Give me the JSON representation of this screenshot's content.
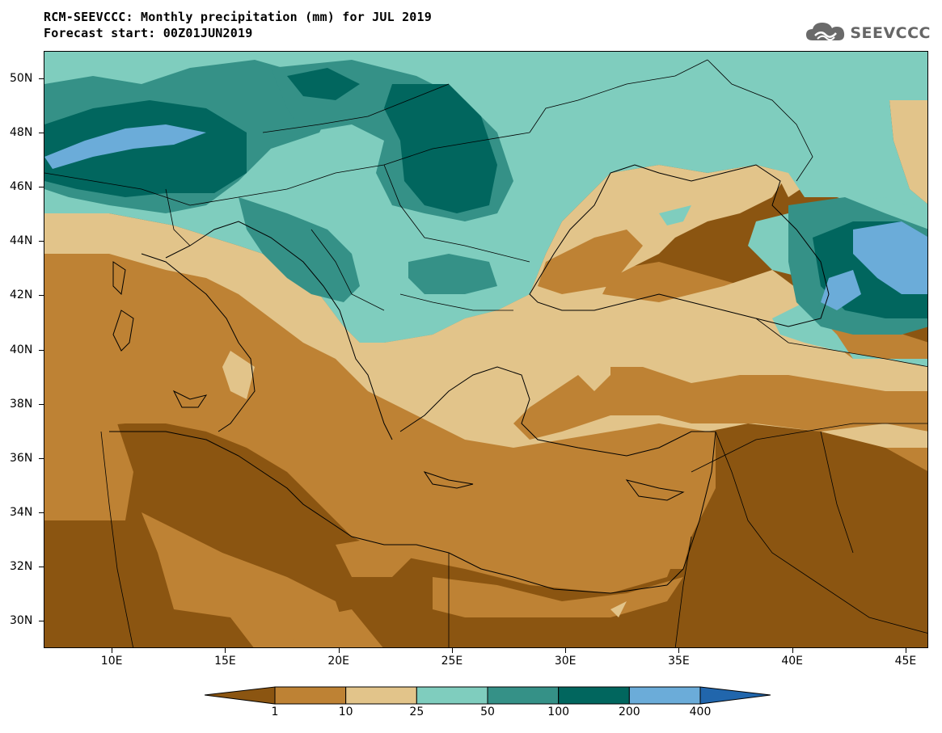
{
  "header": {
    "title": "RCM-SEEVCCC: Monthly precipitation (mm) for JUL 2019",
    "subtitle": "Forecast start: 00Z01JUN2019"
  },
  "logo": {
    "text": "SEEVCCC",
    "icon": "cloud-icon"
  },
  "map": {
    "lat_range": [
      29,
      51
    ],
    "lon_range": [
      7,
      46
    ],
    "lat_ticks": [
      {
        "value": 50,
        "label": "50N"
      },
      {
        "value": 48,
        "label": "48N"
      },
      {
        "value": 46,
        "label": "46N"
      },
      {
        "value": 44,
        "label": "44N"
      },
      {
        "value": 42,
        "label": "42N"
      },
      {
        "value": 40,
        "label": "40N"
      },
      {
        "value": 38,
        "label": "38N"
      },
      {
        "value": 36,
        "label": "36N"
      },
      {
        "value": 34,
        "label": "34N"
      },
      {
        "value": 32,
        "label": "32N"
      },
      {
        "value": 30,
        "label": "30N"
      }
    ],
    "lon_ticks": [
      {
        "value": 10,
        "label": "10E"
      },
      {
        "value": 15,
        "label": "15E"
      },
      {
        "value": 20,
        "label": "20E"
      },
      {
        "value": 25,
        "label": "25E"
      },
      {
        "value": 30,
        "label": "30E"
      },
      {
        "value": 35,
        "label": "35E"
      },
      {
        "value": 40,
        "label": "40E"
      },
      {
        "value": 45,
        "label": "45E"
      }
    ]
  },
  "colorbar": {
    "colors": [
      "#8b5511",
      "#be8234",
      "#e2c48a",
      "#7fcdbe",
      "#359187",
      "#01665e",
      "#6bacd9",
      "#2166ac"
    ],
    "boundaries": [
      "1",
      "10",
      "25",
      "50",
      "100",
      "200",
      "400"
    ]
  }
}
